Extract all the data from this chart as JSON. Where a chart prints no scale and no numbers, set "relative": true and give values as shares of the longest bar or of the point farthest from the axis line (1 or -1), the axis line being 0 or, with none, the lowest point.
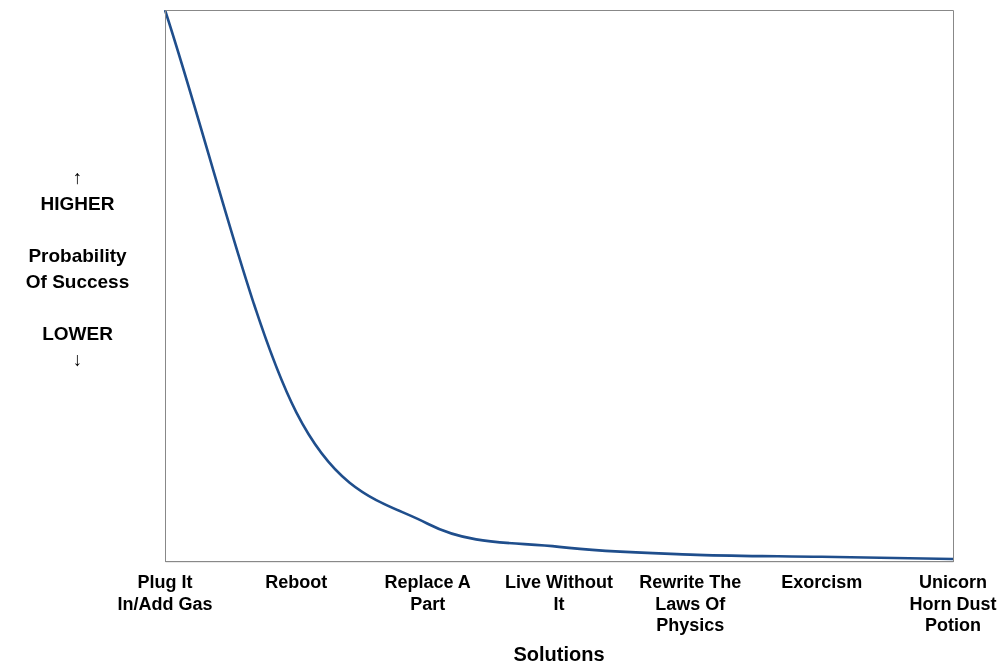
{
  "chart_data": {
    "type": "line",
    "relative": true,
    "xlabel": "Solutions",
    "ylabel": "↑\nHIGHER\n\nProbability\nOf Success\n\nLOWER\n↓",
    "categories": [
      "Plug It In/Add Gas",
      "Reboot",
      "Replace A Part",
      "Live Without It",
      "Rewrite The Laws Of Physics",
      "Exorcism",
      "Unicorn Horn Dust Potion"
    ],
    "series": [
      {
        "color": "#1f4e8c",
        "values": [
          1,
          0.27,
          0.068,
          0.026,
          0.012,
          0.008,
          0.004
        ]
      }
    ],
    "grid": false,
    "legend": false,
    "marker": "none",
    "line_style": "solid"
  }
}
